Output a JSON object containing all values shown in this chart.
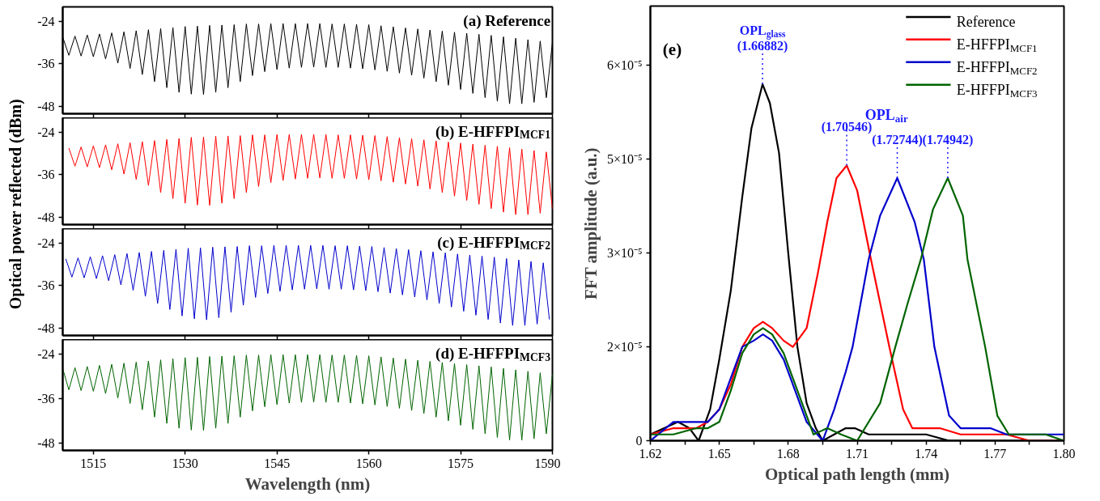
{
  "chart_data": [
    {
      "type": "line",
      "title": "(a) Reference",
      "ylabel": "Optical power reflected (dBm)",
      "xlim": [
        1510,
        1590
      ],
      "xticks": [
        1515,
        1530,
        1545,
        1560,
        1575,
        1590
      ],
      "ylim": [
        -50,
        -20
      ],
      "yticks": [
        -24,
        -36,
        -48
      ],
      "tick_labels": "y",
      "x": [
        1510,
        1511,
        1512,
        1513,
        1514,
        1515,
        1516,
        1517,
        1518,
        1519,
        1520,
        1521,
        1522,
        1523,
        1524,
        1525,
        1526,
        1527,
        1528,
        1529,
        1530,
        1531,
        1532,
        1533,
        1534,
        1535,
        1536,
        1537,
        1538,
        1539,
        1540,
        1541,
        1542,
        1543,
        1544,
        1545,
        1546,
        1547,
        1548,
        1549,
        1550,
        1551,
        1552,
        1553,
        1554,
        1555,
        1556,
        1557,
        1558,
        1559,
        1560,
        1561,
        1562,
        1563,
        1564,
        1565,
        1566,
        1567,
        1568,
        1569,
        1570,
        1571,
        1572,
        1573,
        1574,
        1575,
        1576,
        1577,
        1578,
        1579,
        1580,
        1581,
        1582,
        1583,
        1584,
        1585,
        1586,
        1587,
        1588,
        1589,
        1590
      ],
      "series": [
        {
          "color": "#000000",
          "values": [
            -28.5,
            -33.6,
            -28.2,
            -33.8,
            -27.9,
            -34,
            -27.6,
            -34.6,
            -27.3,
            -35.8,
            -27,
            -37.3,
            -26.7,
            -39,
            -26.4,
            -41,
            -26.1,
            -42.7,
            -25.8,
            -44,
            -25.5,
            -44.5,
            -25.4,
            -44.6,
            -25.2,
            -44,
            -25.1,
            -42.7,
            -25,
            -41,
            -24.8,
            -39.3,
            -24.8,
            -38.2,
            -24.7,
            -37.6,
            -24.7,
            -37.2,
            -24.7,
            -37,
            -24.7,
            -36.9,
            -24.7,
            -37,
            -24.8,
            -37,
            -24.8,
            -37.2,
            -24.9,
            -37.4,
            -25,
            -37.7,
            -25.3,
            -38.1,
            -25.6,
            -38.6,
            -25.9,
            -39.2,
            -26.2,
            -40,
            -26.5,
            -41,
            -26.8,
            -42,
            -27.1,
            -43.2,
            -27.4,
            -44.3,
            -27.7,
            -45.5,
            -28,
            -46.5,
            -28.4,
            -47.2,
            -28.8,
            -47.2,
            -29.2,
            -46.8,
            -29.6,
            -45.5,
            -30
          ]
        }
      ]
    },
    {
      "type": "line",
      "title": "(b) E-HFFPI$_{MCF1}$",
      "xlim": [
        1510,
        1590
      ],
      "xticks": [
        1515,
        1530,
        1545,
        1560,
        1575,
        1590
      ],
      "ylim": [
        -50,
        -20
      ],
      "yticks": [
        -24,
        -36,
        -48
      ],
      "tick_labels": "y",
      "x": [
        1511,
        1512,
        1513,
        1514,
        1515,
        1516,
        1517,
        1518,
        1519,
        1520,
        1521,
        1522,
        1523,
        1524,
        1525,
        1526,
        1527,
        1528,
        1529,
        1530,
        1531,
        1532,
        1533,
        1534,
        1535,
        1536,
        1537,
        1538,
        1539,
        1540,
        1541,
        1542,
        1543,
        1544,
        1545,
        1546,
        1547,
        1548,
        1549,
        1550,
        1551,
        1552,
        1553,
        1554,
        1555,
        1556,
        1557,
        1558,
        1559,
        1560,
        1561,
        1562,
        1563,
        1564,
        1565,
        1566,
        1567,
        1568,
        1569,
        1570,
        1571,
        1572,
        1573,
        1574,
        1575,
        1576,
        1577,
        1578,
        1579,
        1580,
        1581,
        1582,
        1583,
        1584,
        1585,
        1586,
        1587,
        1588,
        1589,
        1590
      ],
      "series": [
        {
          "color": "#ff0000",
          "values": [
            -28.5,
            -33.6,
            -28.2,
            -33.8,
            -27.9,
            -34,
            -27.6,
            -34.6,
            -27.3,
            -35.8,
            -27,
            -37.3,
            -26.7,
            -39,
            -26.4,
            -41,
            -26.1,
            -42.7,
            -25.8,
            -44,
            -25.5,
            -44.5,
            -25.4,
            -44.6,
            -25.2,
            -44,
            -25.1,
            -42.7,
            -25,
            -41,
            -24.8,
            -39.3,
            -24.8,
            -38.2,
            -24.7,
            -37.6,
            -24.7,
            -37.2,
            -24.7,
            -37,
            -24.7,
            -36.9,
            -24.7,
            -37,
            -24.8,
            -37,
            -24.8,
            -37.2,
            -24.9,
            -37.4,
            -25,
            -37.7,
            -25.3,
            -38.1,
            -25.6,
            -38.6,
            -25.9,
            -39.2,
            -26.2,
            -40,
            -26.5,
            -41,
            -26.8,
            -42,
            -27.1,
            -43.2,
            -27.4,
            -44.3,
            -27.7,
            -45.5,
            -28,
            -46.5,
            -28.4,
            -47.2,
            -28.8,
            -47.2,
            -29.2,
            -46.8,
            -29.6,
            -45.5
          ]
        }
      ]
    },
    {
      "type": "line",
      "title": "(c) E-HFFPI$_{MCF2}$",
      "xlim": [
        1510,
        1590
      ],
      "xticks": [
        1515,
        1530,
        1545,
        1560,
        1575,
        1590
      ],
      "ylim": [
        -50,
        -20
      ],
      "yticks": [
        -24,
        -36,
        -48
      ],
      "tick_labels": "y",
      "x": [
        1510.5,
        1511.5,
        1512.5,
        1513.5,
        1514.5,
        1515.5,
        1516.5,
        1517.5,
        1518.5,
        1519.5,
        1520.5,
        1521.5,
        1522.5,
        1523.5,
        1524.5,
        1525.5,
        1526.5,
        1527.5,
        1528.5,
        1529.5,
        1530.5,
        1531.5,
        1532.5,
        1533.5,
        1534.5,
        1535.5,
        1536.5,
        1537.5,
        1538.5,
        1539.5,
        1540.5,
        1541.5,
        1542.5,
        1543.5,
        1544.5,
        1545.5,
        1546.5,
        1547.5,
        1548.5,
        1549.5,
        1550.5,
        1551.5,
        1552.5,
        1553.5,
        1554.5,
        1555.5,
        1556.5,
        1557.5,
        1558.5,
        1559.5,
        1560.5,
        1561.5,
        1562.5,
        1563.5,
        1564.5,
        1565.5,
        1566.5,
        1567.5,
        1568.5,
        1569.5,
        1570.5,
        1571.5,
        1572.5,
        1573.5,
        1574.5,
        1575.5,
        1576.5,
        1577.5,
        1578.5,
        1579.5,
        1580.5,
        1581.5,
        1582.5,
        1583.5,
        1584.5,
        1585.5,
        1586.5,
        1587.5,
        1588.5,
        1589.5
      ],
      "series": [
        {
          "color": "#0000cc",
          "values": [
            -28.5,
            -33.6,
            -28.2,
            -33.8,
            -27.9,
            -34,
            -27.6,
            -34.6,
            -27.3,
            -35.8,
            -27,
            -37.3,
            -26.7,
            -39,
            -26.4,
            -41,
            -26.1,
            -42.7,
            -25.8,
            -44.5,
            -25.5,
            -45.3,
            -25.4,
            -45.6,
            -25.2,
            -45,
            -25.1,
            -43.5,
            -25,
            -41.5,
            -24.8,
            -39.3,
            -24.8,
            -38.2,
            -24.7,
            -37.6,
            -24.7,
            -37.2,
            -24.7,
            -37,
            -24.7,
            -36.9,
            -24.7,
            -37,
            -24.8,
            -37,
            -24.8,
            -37.2,
            -24.9,
            -37.4,
            -25,
            -37.7,
            -25.3,
            -38.1,
            -25.6,
            -38.6,
            -25.9,
            -39.2,
            -26.2,
            -40,
            -26.5,
            -41,
            -26.8,
            -42,
            -27.1,
            -43.2,
            -27.4,
            -44.3,
            -27.7,
            -45.5,
            -28,
            -46.5,
            -28.4,
            -47.2,
            -28.8,
            -47.2,
            -29.2,
            -46.8,
            -29.6,
            -45.5
          ]
        }
      ]
    },
    {
      "type": "line",
      "title": "(d) E-HFFPI$_{MCF3}$",
      "xlabel": "Wavelength (nm)",
      "xlim": [
        1510,
        1590
      ],
      "xticks": [
        1515,
        1530,
        1545,
        1560,
        1575,
        1590
      ],
      "ylim": [
        -50,
        -20
      ],
      "yticks": [
        -24,
        -36,
        -48
      ],
      "x": [
        1510,
        1511,
        1512,
        1513,
        1514,
        1515,
        1516,
        1517,
        1518,
        1519,
        1520,
        1521,
        1522,
        1523,
        1524,
        1525,
        1526,
        1527,
        1528,
        1529,
        1530,
        1531,
        1532,
        1533,
        1534,
        1535,
        1536,
        1537,
        1538,
        1539,
        1540,
        1541,
        1542,
        1543,
        1544,
        1545,
        1546,
        1547,
        1548,
        1549,
        1550,
        1551,
        1552,
        1553,
        1554,
        1555,
        1556,
        1557,
        1558,
        1559,
        1560,
        1561,
        1562,
        1563,
        1564,
        1565,
        1566,
        1567,
        1568,
        1569,
        1570,
        1571,
        1572,
        1573,
        1574,
        1575,
        1576,
        1577,
        1578,
        1579,
        1580,
        1581,
        1582,
        1583,
        1584,
        1585,
        1586,
        1587,
        1588,
        1589,
        1590
      ],
      "series": [
        {
          "color": "#006400",
          "values": [
            -27.9,
            -33.6,
            -27.6,
            -33.8,
            -27.3,
            -34,
            -27,
            -34.6,
            -26.7,
            -35.8,
            -26.4,
            -37.3,
            -26.1,
            -39,
            -25.8,
            -41,
            -25.5,
            -42.7,
            -25.2,
            -44,
            -24.9,
            -44.5,
            -24.8,
            -44.6,
            -24.6,
            -44,
            -24.5,
            -42.7,
            -24.4,
            -41,
            -24.2,
            -39.3,
            -24.2,
            -38.2,
            -24.1,
            -37.6,
            -24.1,
            -37.2,
            -24.1,
            -37,
            -24.1,
            -36.9,
            -24.1,
            -37,
            -24.2,
            -37,
            -24.2,
            -37.2,
            -24.3,
            -37.4,
            -24.4,
            -37.7,
            -24.7,
            -38.1,
            -25,
            -38.6,
            -25.3,
            -39.2,
            -25.6,
            -40,
            -25.9,
            -41,
            -26.2,
            -42,
            -26.5,
            -43.2,
            -26.8,
            -44.3,
            -27.1,
            -45.5,
            -27.4,
            -46.5,
            -27.8,
            -47.2,
            -28.2,
            -47.2,
            -28.6,
            -46.8,
            -29,
            -45.5,
            -29.4
          ]
        }
      ]
    },
    {
      "type": "line",
      "title": "(e)",
      "xlabel": "Optical path length (mm)",
      "ylabel": "FFT amplitude (a.u.)",
      "xlim": [
        1.62,
        1.8
      ],
      "xticks": [
        1.62,
        {
          "value": 1.635,
          "label": null
        },
        1.65,
        {
          "value": 1.665,
          "label": null
        },
        1.68,
        {
          "value": 1.695,
          "label": null
        },
        1.71,
        {
          "value": 1.725,
          "label": null
        },
        1.74,
        {
          "value": 1.755,
          "label": null
        },
        1.77,
        {
          "value": 1.785,
          "label": null
        },
        {
          "value": 1.8,
          "label": "1.80"
        }
      ],
      "ylim": [
        0,
        6.95e-05
      ],
      "yticks": [
        0,
        {
          "value": 1.5e-05,
          "label": "2×10⁻⁵"
        },
        {
          "value": 3e-05,
          "label": "3×10⁻⁵"
        },
        {
          "value": 4.5e-05,
          "label": "5×10⁻⁵"
        },
        {
          "value": 6e-05,
          "label": "6×10⁻⁵"
        }
      ],
      "legend": "top right",
      "series": [
        {
          "name": "Reference",
          "color": "#000000",
          "x": [
            1.62,
            1.626,
            1.632,
            1.637,
            1.641,
            1.646,
            1.65,
            1.655,
            1.66,
            1.664,
            1.66882,
            1.672,
            1.676,
            1.68,
            1.684,
            1.688,
            1.692,
            1.695,
            1.7,
            1.705,
            1.709,
            1.715,
            1.72,
            1.726,
            1.732,
            1.74,
            1.75,
            1.76,
            1.77,
            1.78,
            1.79,
            1.8
          ],
          "values": [
            1e-06,
            2e-06,
            3e-06,
            2e-06,
            0.0,
            5e-06,
            1.3e-05,
            2.4e-05,
            3.9e-05,
            5e-05,
            5.7e-05,
            5.4e-05,
            4.6e-05,
            3e-05,
            1.5e-05,
            6e-06,
            2e-06,
            0.0,
            1e-06,
            2e-06,
            2e-06,
            1e-06,
            1e-06,
            1e-06,
            1e-06,
            1e-06,
            0.0,
            0.0,
            0.0,
            0.0,
            0.0,
            0.0
          ]
        },
        {
          "name": "E-HFFPI$_{MCF1}$",
          "color": "#ff0000",
          "x": [
            1.62,
            1.63,
            1.64,
            1.645,
            1.65,
            1.655,
            1.66,
            1.665,
            1.669,
            1.673,
            1.678,
            1.682,
            1.688,
            1.693,
            1.697,
            1.701,
            1.70546,
            1.71,
            1.716,
            1.72,
            1.724,
            1.73,
            1.734,
            1.74,
            1.746,
            1.755,
            1.765,
            1.775,
            1.785,
            1.8
          ],
          "values": [
            1e-06,
            2e-06,
            2e-06,
            3e-06,
            5e-06,
            9e-06,
            1.5e-05,
            1.8e-05,
            1.9e-05,
            1.8e-05,
            1.6e-05,
            1.5e-05,
            1.8e-05,
            2.7e-05,
            3.5e-05,
            4.2e-05,
            4.4e-05,
            4e-05,
            2.9e-05,
            2.2e-05,
            1.5e-05,
            5e-06,
            2e-06,
            2e-06,
            2e-06,
            1e-06,
            1e-06,
            1e-06,
            0.0,
            0.0
          ]
        },
        {
          "name": "E-HFFPI$_{MCF2}$",
          "color": "#0000cc",
          "x": [
            1.62,
            1.63,
            1.64,
            1.645,
            1.65,
            1.655,
            1.66,
            1.665,
            1.669,
            1.673,
            1.678,
            1.683,
            1.688,
            1.695,
            1.7,
            1.705,
            1.708,
            1.715,
            1.72,
            1.72744,
            1.735,
            1.739,
            1.7436,
            1.75,
            1.755,
            1.762,
            1.768,
            1.775,
            1.785,
            1.8
          ],
          "values": [
            0.0,
            3e-06,
            3e-06,
            3e-06,
            5e-06,
            1e-05,
            1.5e-05,
            1.6e-05,
            1.7e-05,
            1.6e-05,
            1.3e-05,
            8e-06,
            3e-06,
            0.0,
            5e-06,
            1.1e-05,
            1.5e-05,
            2.9e-05,
            3.6e-05,
            4.2e-05,
            3.5e-05,
            2.9e-05,
            1.5e-05,
            4e-06,
            2e-06,
            2e-06,
            2e-06,
            1e-06,
            1e-06,
            1e-06
          ]
        },
        {
          "name": "E-HFFPI$_{MCF3}$",
          "color": "#006400",
          "x": [
            1.62,
            1.63,
            1.64,
            1.645,
            1.65,
            1.655,
            1.66,
            1.665,
            1.669,
            1.673,
            1.678,
            1.683,
            1.688,
            1.691,
            1.697,
            1.703,
            1.71,
            1.72,
            1.7266,
            1.732,
            1.7377,
            1.743,
            1.74942,
            1.756,
            1.758,
            1.7657,
            1.771,
            1.776,
            1.785,
            1.792,
            1.8
          ],
          "values": [
            1e-06,
            1e-06,
            2e-06,
            2e-06,
            3e-06,
            8e-06,
            1.4e-05,
            1.7e-05,
            1.8e-05,
            1.7e-05,
            1.4e-05,
            9e-06,
            4e-06,
            1e-06,
            2e-06,
            1e-06,
            0.0,
            6e-06,
            1.5e-05,
            2.2e-05,
            2.9e-05,
            3.7e-05,
            4.2e-05,
            3.6e-05,
            2.9e-05,
            1.5e-05,
            4e-06,
            1e-06,
            1e-06,
            1e-06,
            0.0
          ]
        }
      ],
      "annotations": [
        {
          "text": "OPL$_{glass}$\n(1.66882)",
          "x": 1.66882,
          "y": 5.7e-05
        },
        "OPL$_{air}$",
        {
          "text": "(1.70546)",
          "x": 1.70546,
          "y": 4.4e-05
        },
        {
          "text": "(1.72744)",
          "x": 1.72744,
          "y": 4.2e-05
        },
        {
          "text": "(1.74942)",
          "x": 1.74942,
          "y": 4.2e-05
        }
      ]
    }
  ]
}
